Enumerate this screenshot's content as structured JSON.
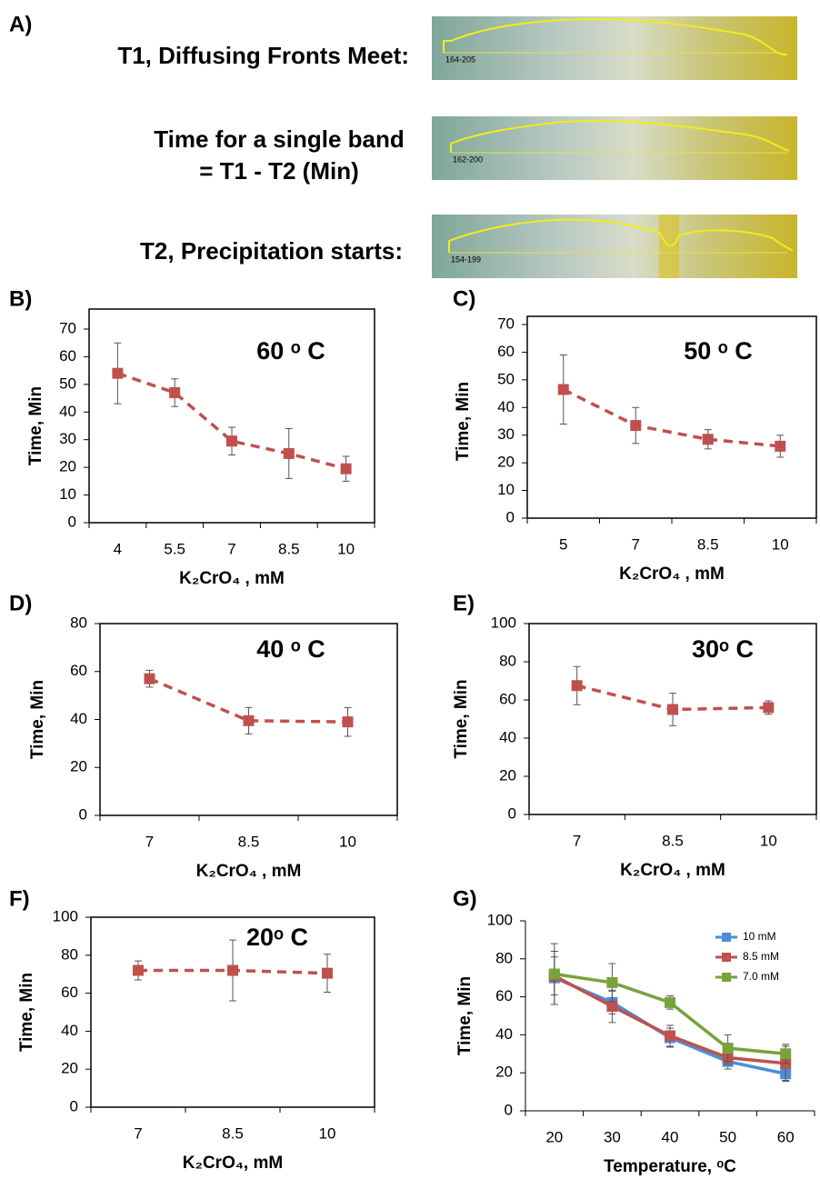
{
  "panel_a": {
    "label": "A)",
    "rows": [
      {
        "text": [
          "T1, Diffusing Fronts Meet:"
        ],
        "strip_label": "164-205"
      },
      {
        "text": [
          "Time for a single band",
          "= T1 - T2 (Min)"
        ],
        "strip_label": "162-200"
      },
      {
        "text": [
          "T2, Precipitation starts:"
        ],
        "strip_label": "154-199"
      }
    ]
  },
  "chart_data": [
    {
      "type": "line",
      "panel": "B)",
      "title": "60 ᵒ C",
      "xlabel": "K₂CrO₄ , mM",
      "ylabel": "Time, Min",
      "categories": [
        "4",
        "5.5",
        "7",
        "8.5",
        "10"
      ],
      "values": [
        54,
        47,
        29.5,
        25,
        19.5
      ],
      "errors": [
        11,
        5,
        5,
        9,
        4.5
      ],
      "color": "#c0504d",
      "line_style": "dashed",
      "ylim": [
        0,
        70
      ],
      "yticks": [
        0,
        10,
        20,
        30,
        40,
        50,
        60,
        70
      ]
    },
    {
      "type": "line",
      "panel": "C)",
      "title": "50 ᵒ C",
      "xlabel": "K₂CrO₄ , mM",
      "ylabel": "Time, Min",
      "categories": [
        "5",
        "7",
        "8.5",
        "10"
      ],
      "values": [
        46.5,
        33.5,
        28.5,
        26
      ],
      "errors": [
        12.5,
        6.5,
        3.5,
        4
      ],
      "color": "#c0504d",
      "line_style": "dashed",
      "ylim": [
        0,
        70
      ],
      "yticks": [
        0,
        10,
        20,
        30,
        40,
        50,
        60,
        70
      ]
    },
    {
      "type": "line",
      "panel": "D)",
      "title": "40 ᵒ C",
      "xlabel": "K₂CrO₄ , mM",
      "ylabel": "Time, Min",
      "categories": [
        "7",
        "8.5",
        "10"
      ],
      "values": [
        57,
        39.5,
        39
      ],
      "errors": [
        3.5,
        5.5,
        6
      ],
      "color": "#c0504d",
      "line_style": "dashed",
      "ylim": [
        0,
        80
      ],
      "yticks": [
        0,
        20,
        40,
        60,
        80
      ]
    },
    {
      "type": "line",
      "panel": "E)",
      "title": "30ᵒ C",
      "xlabel": "K₂CrO₄ , mM",
      "ylabel": "Time, Min",
      "categories": [
        "7",
        "8.5",
        "10"
      ],
      "values": [
        67.5,
        55,
        56
      ],
      "errors": [
        10,
        8.5,
        3.5
      ],
      "color": "#c0504d",
      "line_style": "dashed",
      "ylim": [
        0,
        100
      ],
      "yticks": [
        0,
        20,
        40,
        60,
        80,
        100
      ]
    },
    {
      "type": "line",
      "panel": "F)",
      "title": "20ᵒ C",
      "xlabel": "K₂CrO₄, mM",
      "ylabel": "Time, Min",
      "categories": [
        "7",
        "8.5",
        "10"
      ],
      "values": [
        72,
        72,
        70.5
      ],
      "errors": [
        5,
        16,
        10
      ],
      "color": "#c0504d",
      "line_style": "dashed",
      "ylim": [
        0,
        100
      ],
      "yticks": [
        0,
        20,
        40,
        60,
        80,
        100
      ]
    },
    {
      "type": "multiline",
      "panel": "G)",
      "xlabel": "Temperature, ᵒC",
      "ylabel": "Time, Min",
      "categories": [
        "20",
        "30",
        "40",
        "50",
        "60"
      ],
      "line_style": "solid",
      "legend": "upper right",
      "series": [
        {
          "name": "10 mM",
          "color": "#4a8fd6",
          "values": [
            70,
            57,
            38.5,
            26,
            19.5
          ],
          "errors": [
            14,
            6,
            5,
            4,
            4
          ]
        },
        {
          "name": "8.5 mM",
          "color": "#c0504d",
          "values": [
            71,
            55,
            39.5,
            28,
            25
          ],
          "errors": [
            10,
            8.5,
            5.5,
            3.5,
            9
          ]
        },
        {
          "name": "7.0 mM",
          "color": "#77a33b",
          "values": [
            72,
            67.5,
            57,
            33,
            30
          ],
          "errors": [
            16,
            10,
            3.5,
            7,
            5
          ]
        }
      ],
      "ylim": [
        0,
        100
      ],
      "yticks": [
        0,
        20,
        40,
        60,
        80,
        100
      ]
    }
  ]
}
